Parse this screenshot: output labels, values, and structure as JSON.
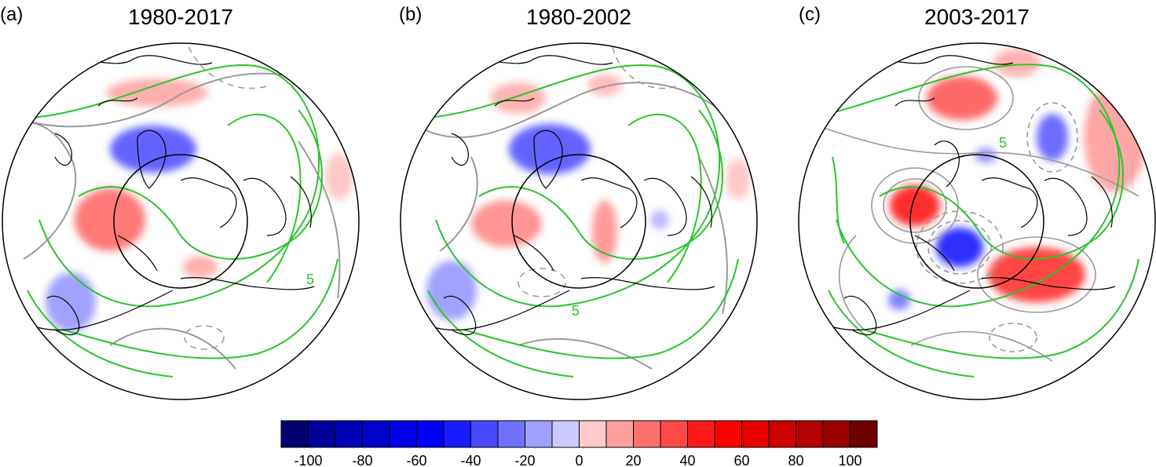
{
  "panels": [
    {
      "letter": "(a)",
      "title": "1980-2017",
      "contour_label": "5"
    },
    {
      "letter": "(b)",
      "title": "1980-2002",
      "contour_label": "5"
    },
    {
      "letter": "(c)",
      "title": "2003-2017",
      "contour_label": "5"
    }
  ],
  "colorbar": {
    "colors": [
      "#00006e",
      "#00009b",
      "#0000b4",
      "#0000cd",
      "#0000e6",
      "#0000ff",
      "#1a1aff",
      "#4848ff",
      "#7070ff",
      "#a0a0ff",
      "#cacaff",
      "#ffcaca",
      "#ffa0a0",
      "#ff7070",
      "#ff4848",
      "#ff1a1a",
      "#ff0000",
      "#e60000",
      "#cd0000",
      "#b40000",
      "#9b0000",
      "#6e0000"
    ],
    "tick_labels": [
      "-100",
      "-80",
      "-60",
      "-40",
      "-20",
      "0",
      "20",
      "40",
      "60",
      "80",
      "100"
    ]
  },
  "colors": {
    "positive": "#ff5a5a",
    "negative": "#3a3af0",
    "jet_contour": "#2bc42b",
    "anomaly_contour": "#999999",
    "coastline": "#000000"
  }
}
